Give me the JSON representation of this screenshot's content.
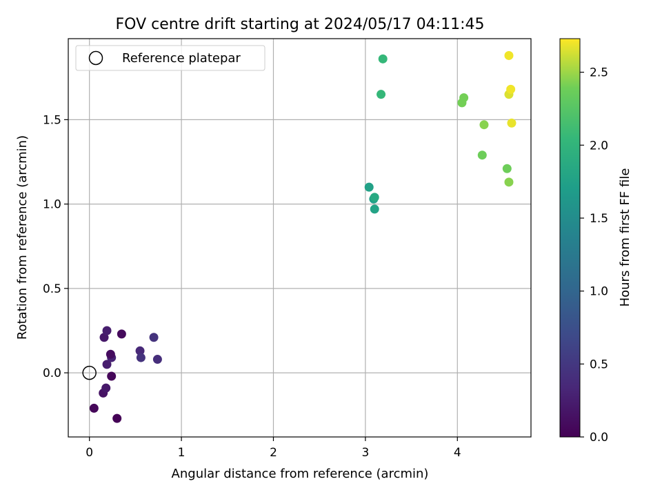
{
  "chart_data": {
    "type": "scatter",
    "title": "FOV centre drift starting at 2024/05/17 04:11:45",
    "xlabel": "Angular distance from reference (arcmin)",
    "ylabel": "Rotation from reference (arcmin)",
    "xlim": [
      -0.23,
      4.8
    ],
    "ylim": [
      -0.38,
      1.98
    ],
    "xticks": [
      0,
      1,
      2,
      3,
      4
    ],
    "yticks": [
      0.0,
      0.5,
      1.0,
      1.5
    ],
    "xtick_labels": [
      "0",
      "1",
      "2",
      "3",
      "4"
    ],
    "ytick_labels": [
      "0.0",
      "0.5",
      "1.0",
      "1.5"
    ],
    "grid": true,
    "legend": {
      "position": "top-left",
      "entries": [
        "Reference platepar"
      ]
    },
    "reference_point": {
      "x": 0,
      "y": 0
    },
    "colorbar": {
      "label": "Hours from first FF file",
      "colormap": "viridis",
      "range": [
        0.0,
        2.73
      ],
      "ticks": [
        0.0,
        0.5,
        1.0,
        1.5,
        2.0,
        2.5
      ],
      "tick_labels": [
        "0.0",
        "0.5",
        "1.0",
        "1.5",
        "2.0",
        "2.5"
      ]
    },
    "points": [
      {
        "x": 0.05,
        "y": -0.21,
        "hours": 0.05
      },
      {
        "x": 0.3,
        "y": -0.27,
        "hours": 0.02
      },
      {
        "x": 0.15,
        "y": -0.12,
        "hours": 0.15
      },
      {
        "x": 0.18,
        "y": -0.09,
        "hours": 0.2
      },
      {
        "x": 0.24,
        "y": -0.02,
        "hours": 0.05
      },
      {
        "x": 0.19,
        "y": 0.05,
        "hours": 0.25
      },
      {
        "x": 0.24,
        "y": 0.09,
        "hours": 0.3
      },
      {
        "x": 0.23,
        "y": 0.11,
        "hours": 0.1
      },
      {
        "x": 0.16,
        "y": 0.21,
        "hours": 0.2
      },
      {
        "x": 0.19,
        "y": 0.25,
        "hours": 0.25
      },
      {
        "x": 0.35,
        "y": 0.23,
        "hours": 0.08
      },
      {
        "x": 0.55,
        "y": 0.13,
        "hours": 0.35
      },
      {
        "x": 0.56,
        "y": 0.09,
        "hours": 0.45
      },
      {
        "x": 0.7,
        "y": 0.21,
        "hours": 0.45
      },
      {
        "x": 0.74,
        "y": 0.08,
        "hours": 0.4
      },
      {
        "x": 3.04,
        "y": 1.1,
        "hours": 1.75
      },
      {
        "x": 3.09,
        "y": 1.03,
        "hours": 1.72
      },
      {
        "x": 3.1,
        "y": 1.04,
        "hours": 1.85
      },
      {
        "x": 3.1,
        "y": 0.97,
        "hours": 1.78
      },
      {
        "x": 3.17,
        "y": 1.65,
        "hours": 2.05
      },
      {
        "x": 3.19,
        "y": 1.86,
        "hours": 2.05
      },
      {
        "x": 4.05,
        "y": 1.6,
        "hours": 2.4
      },
      {
        "x": 4.07,
        "y": 1.63,
        "hours": 2.4
      },
      {
        "x": 4.29,
        "y": 1.47,
        "hours": 2.45
      },
      {
        "x": 4.27,
        "y": 1.29,
        "hours": 2.38
      },
      {
        "x": 4.54,
        "y": 1.21,
        "hours": 2.38
      },
      {
        "x": 4.56,
        "y": 1.13,
        "hours": 2.45
      },
      {
        "x": 4.56,
        "y": 1.88,
        "hours": 2.7
      },
      {
        "x": 4.56,
        "y": 1.65,
        "hours": 2.65
      },
      {
        "x": 4.58,
        "y": 1.68,
        "hours": 2.7
      },
      {
        "x": 4.59,
        "y": 1.48,
        "hours": 2.68
      }
    ]
  }
}
